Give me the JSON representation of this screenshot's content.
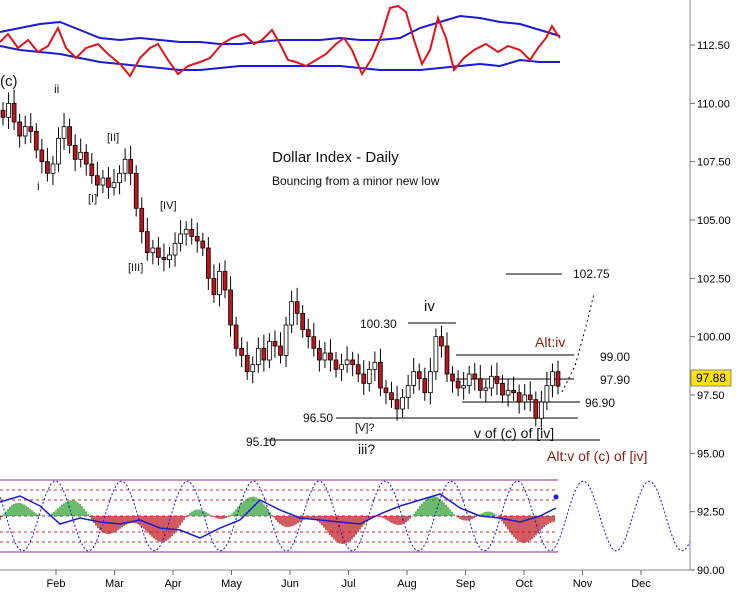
{
  "chart_data": {
    "type": "candlestick",
    "title": "Dollar Index - Daily",
    "subtitle": "Bouncing from a minor new low",
    "ylim": [
      90,
      114
    ],
    "x_ticks": [
      "Feb",
      "Mar",
      "Apr",
      "May",
      "Jun",
      "Jul",
      "Aug",
      "Sep",
      "Oct",
      "Nov",
      "Dec"
    ],
    "y_ticks": [
      "112.50",
      "110.00",
      "107.50",
      "105.00",
      "102.50",
      "100.00",
      "97.50",
      "95.00",
      "92.50",
      "90.00"
    ],
    "last_price": "97.88",
    "closes": [
      109.4,
      110.0,
      109.2,
      108.6,
      109.0,
      108.8,
      108.0,
      107.5,
      107.0,
      107.4,
      108.5,
      109.0,
      108.2,
      107.6,
      107.9,
      107.4,
      106.9,
      106.5,
      106.8,
      106.4,
      106.6,
      107.0,
      107.6,
      107.0,
      105.5,
      104.5,
      103.6,
      103.8,
      103.4,
      103.3,
      103.5,
      104.0,
      104.4,
      104.6,
      104.3,
      104.1,
      103.8,
      102.5,
      101.8,
      102.8,
      102.0,
      100.5,
      99.5,
      99.2,
      98.5,
      98.8,
      99.5,
      99.0,
      99.8,
      99.6,
      99.2,
      100.5,
      101.5,
      101.0,
      100.3,
      100.0,
      99.5,
      99.0,
      99.3,
      99.0,
      98.6,
      98.8,
      99.0,
      98.8,
      98.4,
      98.0,
      98.6,
      98.9,
      97.8,
      97.6,
      97.3,
      96.9,
      97.4,
      97.9,
      98.5,
      98.2,
      97.6,
      98.5,
      100.0,
      99.6,
      98.4,
      98.1,
      97.8,
      97.9,
      98.4,
      98.2,
      97.7,
      97.8,
      98.3,
      98.0,
      97.5,
      97.7,
      97.6,
      97.2,
      97.5,
      97.3,
      96.5,
      97.2,
      97.9,
      98.5,
      97.88
    ],
    "price_levels": [
      {
        "label": "102.75",
        "value": 102.75
      },
      {
        "label": "100.30",
        "value": 100.3
      },
      {
        "label": "99.00",
        "value": 99.0
      },
      {
        "label": "97.90",
        "value": 97.9
      },
      {
        "label": "96.90",
        "value": 96.9
      },
      {
        "label": "96.50",
        "value": 96.5
      },
      {
        "label": "95.10",
        "value": 95.1
      }
    ],
    "wave_labels": [
      "(c)",
      "ii",
      "i",
      "[II]",
      "[I]",
      "[IV]",
      "[III]",
      "iv",
      "[V]?",
      "iii?"
    ],
    "annotations": [
      "Alt:iv",
      "v of (c) of [iv]",
      "Alt:v of (c) of [iv]"
    ]
  },
  "colors": {
    "bear": "#c0141c",
    "bull": "#ffffff",
    "oscillator": "#e0141c",
    "band": "#1a1ad8",
    "histogram_up": "#2e9e2e",
    "histogram_down": "#c0141c",
    "annotation": "#8b1a10"
  }
}
